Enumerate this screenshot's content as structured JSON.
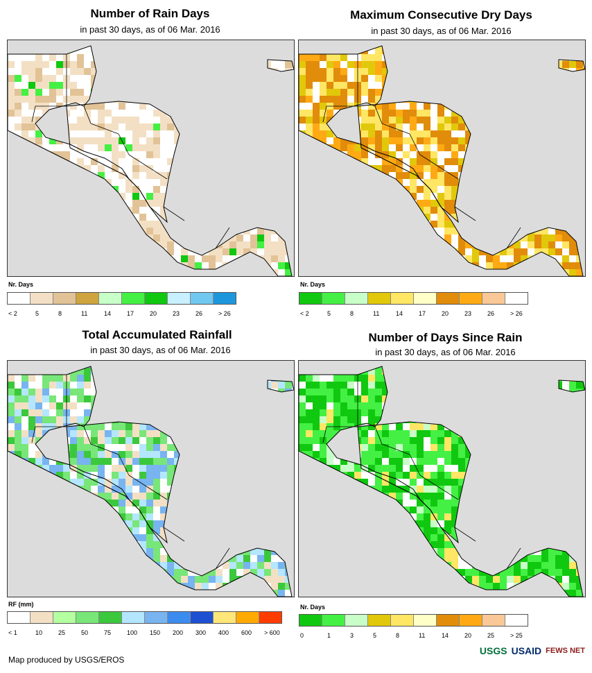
{
  "panels": [
    {
      "title": "Number of Rain Days",
      "subtitle": "in past 30 days, as of 06 Mar. 2016",
      "legend_label": "Nr. Days",
      "colors": [
        "#ffffff",
        "#f3e0c4",
        "#e1c397",
        "#cfa43e",
        "#c8ffc8",
        "#44f044",
        "#10c810",
        "#c8f0ff",
        "#70c8f0",
        "#1e96dc"
      ],
      "ticks": [
        "< 2",
        "5",
        "8",
        "11",
        "14",
        "17",
        "20",
        "23",
        "26",
        "> 26"
      ]
    },
    {
      "title": "Maximum Consecutive Dry Days",
      "subtitle": "in past 30 days, as of 06 Mar. 2016",
      "legend_label": "Nr. Days",
      "colors": [
        "#10c810",
        "#44f044",
        "#c8ffc8",
        "#e1c80a",
        "#ffe664",
        "#ffffc8",
        "#e18c0a",
        "#ffaa14",
        "#fac896",
        "#ffffff"
      ],
      "ticks": [
        "< 2",
        "5",
        "8",
        "11",
        "14",
        "17",
        "20",
        "23",
        "26",
        "> 26"
      ]
    },
    {
      "title": "Total Accumulated Rainfall",
      "subtitle": "in past 30 days, as of 06 Mar. 2016",
      "legend_label": "RF (mm)",
      "colors": [
        "#ffffff",
        "#f3e0c4",
        "#b4ffa0",
        "#78e678",
        "#3cc83c",
        "#b4e6ff",
        "#78b4f0",
        "#3c8cf0",
        "#1e50d2",
        "#ffe678",
        "#ffaa00",
        "#ff3c00"
      ],
      "ticks": [
        "< 1",
        "10",
        "25",
        "50",
        "75",
        "100",
        "150",
        "200",
        "300",
        "400",
        "600",
        "> 600"
      ]
    },
    {
      "title": "Number of Days Since Rain",
      "subtitle": "in past 30 days, as of 06 Mar. 2016",
      "legend_label": "Nr. Days",
      "colors": [
        "#10c810",
        "#44f044",
        "#c8ffc8",
        "#e1c80a",
        "#ffe664",
        "#ffffc8",
        "#e18c0a",
        "#ffaa14",
        "#fac896",
        "#ffffff"
      ],
      "ticks": [
        "0",
        "1",
        "3",
        "5",
        "8",
        "11",
        "14",
        "20",
        "25",
        "> 25"
      ]
    }
  ],
  "footer": "Map produced by USGS/EROS",
  "logos": [
    "USGS",
    "USAID",
    "FEWS NET"
  ]
}
